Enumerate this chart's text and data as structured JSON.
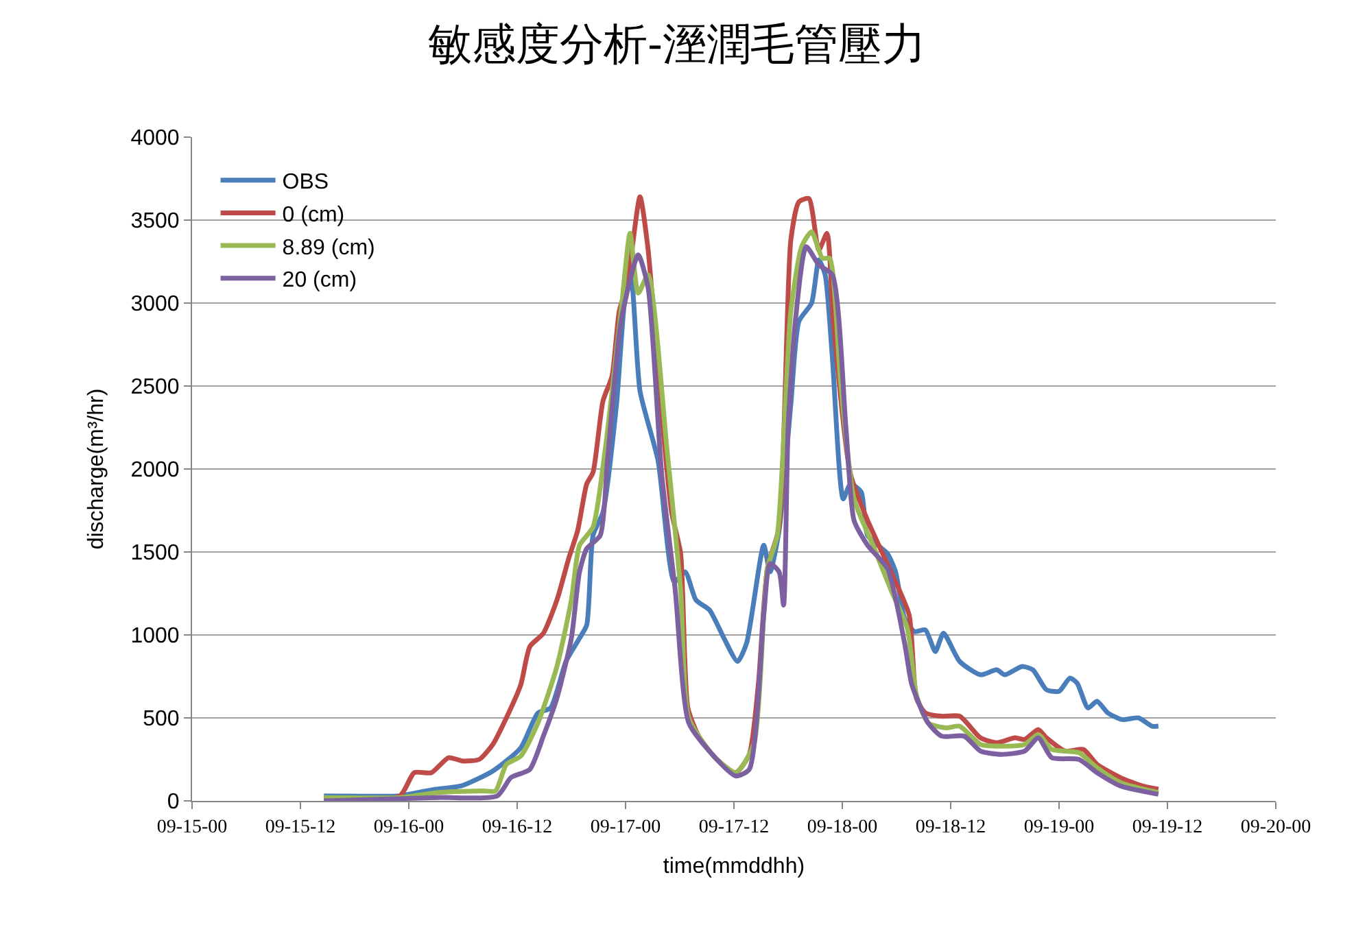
{
  "chart_data": {
    "type": "line",
    "title": "敏感度分析-溼潤毛管壓力",
    "xlabel": "time(mmddhh)",
    "ylabel": "discharge(m³/hr)",
    "xlim": [
      "--09-15T00:00",
      "--09-20T00:00"
    ],
    "xticks": [
      {
        "value": "--09-15T00:00",
        "label": "09-15-00"
      },
      {
        "value": "--09-15T12:00",
        "label": "09-15-12"
      },
      {
        "value": "--09-16T00:00",
        "label": "09-16-00"
      },
      {
        "value": "--09-16T12:00",
        "label": "09-16-12"
      },
      {
        "value": "--09-17T00:00",
        "label": "09-17-00"
      },
      {
        "value": "--09-17T12:00",
        "label": "09-17-12"
      },
      {
        "value": "--09-18T00:00",
        "label": "09-18-00"
      },
      {
        "value": "--09-18T12:00",
        "label": "09-18-12"
      },
      {
        "value": "--09-19T00:00",
        "label": "09-19-00"
      },
      {
        "value": "--09-19T12:00",
        "label": "09-19-12"
      },
      {
        "value": "--09-20T00:00",
        "label": "09-20-00"
      }
    ],
    "ylim": [
      0,
      4000
    ],
    "yticks": [
      0,
      500,
      1000,
      1500,
      2000,
      2500,
      3000,
      3500,
      4000
    ],
    "grid": "y",
    "legend": "top left",
    "marker": "none",
    "line_style": "solid",
    "series": [
      {
        "name": "OBS",
        "color": "#4a7ebb",
        "x": [
          "--09-15T14:36",
          "--09-15T23:00",
          "--09-16T00:00",
          "--09-16T03:00",
          "--09-16T05:48",
          "--09-16T09:18",
          "--09-16T12:24",
          "--09-16T14:18",
          "--09-16T15:42",
          "--09-16T17:24",
          "--09-16T18:54",
          "--09-16T19:42",
          "--09-16T20:24",
          "--09-16T21:30",
          "--09-16T23:00",
          "--09-17T00:00",
          "--09-17T00:36",
          "--09-17T01:36",
          "--09-17T03:36",
          "--09-17T05:24",
          "--09-17T06:36",
          "--09-17T07:48",
          "--09-17T09:18",
          "--09-17T10:54",
          "--09-17T12:24",
          "--09-17T13:24",
          "--09-17T15:18",
          "--09-17T16:00",
          "--09-17T17:00",
          "--09-17T18:18",
          "--09-17T19:12",
          "--09-17T20:36",
          "--09-17T21:24",
          "--09-17T22:06",
          "--09-17T22:54",
          "--09-18T00:06",
          "--09-18T00:54",
          "--09-18T02:06",
          "--09-18T02:48",
          "--09-18T05:00",
          "--09-18T05:54",
          "--09-18T06:54",
          "--09-18T08:00",
          "--09-18T09:12",
          "--09-18T10:18",
          "--09-18T11:12",
          "--09-18T13:00",
          "--09-18T15:18",
          "--09-18T17:06",
          "--09-18T18:00",
          "--09-18T19:54",
          "--09-18T21:06",
          "--09-18T22:36",
          "--09-19T00:00",
          "--09-19T01:12",
          "--09-19T02:00",
          "--09-19T03:12",
          "--09-19T04:12",
          "--09-19T05:24",
          "--09-19T07:00",
          "--09-19T08:48",
          "--09-19T10:18",
          "--09-19T11:00"
        ],
        "values": [
          30,
          30,
          40,
          70,
          90,
          180,
          320,
          530,
          560,
          840,
          980,
          1060,
          1600,
          1740,
          2390,
          3060,
          3150,
          2470,
          2050,
          1320,
          1380,
          1210,
          1150,
          980,
          840,
          950,
          1540,
          1380,
          1630,
          2390,
          2890,
          3000,
          3260,
          3170,
          2670,
          1820,
          1910,
          1860,
          1600,
          1490,
          1380,
          1100,
          1020,
          1030,
          900,
          1010,
          840,
          760,
          790,
          760,
          810,
          790,
          670,
          660,
          740,
          710,
          560,
          600,
          530,
          490,
          500,
          450,
          450
        ]
      },
      {
        "name": "0 (cm)",
        "color": "#be4b48",
        "x": [
          "--09-15T14:36",
          "--09-15T23:00",
          "--09-16T00:36",
          "--09-16T02:30",
          "--09-16T04:24",
          "--09-16T06:00",
          "--09-16T07:48",
          "--09-16T09:18",
          "--09-16T10:48",
          "--09-16T12:24",
          "--09-16T13:24",
          "--09-16T14:54",
          "--09-16T16:24",
          "--09-16T17:42",
          "--09-16T18:42",
          "--09-16T19:42",
          "--09-16T20:24",
          "--09-16T21:30",
          "--09-16T22:30",
          "--09-16T23:18",
          "--09-17T00:12",
          "--09-17T01:36",
          "--09-17T02:30",
          "--09-17T03:54",
          "--09-17T05:06",
          "--09-17T06:06",
          "--09-17T06:54",
          "--09-17T08:06",
          "--09-17T10:06",
          "--09-17T12:12",
          "--09-17T13:42",
          "--09-17T14:42",
          "--09-17T15:42",
          "--09-17T17:00",
          "--09-17T18:18",
          "--09-17T19:12",
          "--09-17T20:18",
          "--09-17T21:24",
          "--09-17T22:18",
          "--09-17T23:00",
          "--09-18T00:54",
          "--09-18T02:48",
          "--09-18T05:24",
          "--09-18T07:24",
          "--09-18T08:12",
          "--09-18T09:12",
          "--09-18T11:00",
          "--09-18T13:00",
          "--09-18T15:18",
          "--09-18T17:06",
          "--09-18T19:06",
          "--09-18T20:12",
          "--09-18T21:42",
          "--09-18T22:36",
          "--09-19T00:42",
          "--09-19T02:42",
          "--09-19T04:12",
          "--09-19T06:48",
          "--09-19T09:12",
          "--09-19T11:00"
        ],
        "values": [
          20,
          30,
          170,
          170,
          260,
          240,
          250,
          340,
          500,
          700,
          930,
          1010,
          1210,
          1460,
          1630,
          1910,
          1980,
          2410,
          2560,
          2950,
          3120,
          3640,
          3320,
          2390,
          1740,
          1490,
          560,
          390,
          250,
          170,
          280,
          700,
          1400,
          1650,
          3380,
          3610,
          3630,
          3320,
          3420,
          2890,
          1970,
          1690,
          1380,
          1120,
          620,
          530,
          510,
          510,
          380,
          350,
          380,
          370,
          430,
          380,
          300,
          310,
          220,
          140,
          90,
          70
        ]
      },
      {
        "name": "8.89 (cm)",
        "color": "#98b954",
        "x": [
          "--09-15T14:36",
          "--09-15T23:00",
          "--09-16T03:12",
          "--09-16T08:12",
          "--09-16T09:36",
          "--09-16T10:48",
          "--09-16T12:24",
          "--09-16T14:18",
          "--09-16T16:24",
          "--09-16T18:00",
          "--09-16T18:54",
          "--09-16T20:24",
          "--09-16T21:48",
          "--09-16T23:30",
          "--09-17T00:30",
          "--09-17T01:24",
          "--09-17T02:30",
          "--09-17T04:36",
          "--09-17T06:06",
          "--09-17T07:00",
          "--09-17T09:36",
          "--09-17T12:12",
          "--09-17T14:12",
          "--09-17T15:18",
          "--09-17T15:42",
          "--09-17T16:48",
          "--09-17T18:18",
          "--09-17T19:30",
          "--09-17T20:36",
          "--09-17T21:48",
          "--09-17T22:36",
          "--09-17T23:48",
          "--09-18T01:18",
          "--09-18T03:24",
          "--09-18T05:24",
          "--09-18T07:12",
          "--09-18T08:12",
          "--09-18T09:30",
          "--09-18T11:30",
          "--09-18T13:00",
          "--09-18T15:18",
          "--09-18T17:36",
          "--09-18T20:12",
          "--09-18T21:42",
          "--09-18T23:12",
          "--09-19T02:12",
          "--09-19T04:12",
          "--09-19T06:48",
          "--09-19T11:00"
        ],
        "values": [
          20,
          20,
          50,
          60,
          60,
          220,
          270,
          470,
          810,
          1210,
          1540,
          1650,
          2140,
          2950,
          3420,
          3060,
          3170,
          2110,
          1270,
          500,
          280,
          170,
          340,
          1120,
          1400,
          1600,
          2950,
          3340,
          3430,
          3270,
          3270,
          2530,
          1820,
          1540,
          1270,
          1040,
          640,
          470,
          440,
          450,
          340,
          330,
          340,
          400,
          310,
          290,
          200,
          110,
          50
        ]
      },
      {
        "name": "20 (cm)",
        "color": "#7d60a0",
        "x": [
          "--09-15T14:36",
          "--09-16T03:12",
          "--09-16T09:48",
          "--09-16T11:18",
          "--09-16T13:24",
          "--09-16T14:54",
          "--09-16T16:24",
          "--09-16T18:00",
          "--09-16T18:54",
          "--09-16T19:42",
          "--09-16T21:12",
          "--09-16T22:00",
          "--09-16T23:30",
          "--09-17T01:24",
          "--09-17T02:30",
          "--09-17T04:00",
          "--09-17T05:30",
          "--09-17T07:00",
          "--09-17T09:36",
          "--09-17T12:12",
          "--09-17T13:42",
          "--09-17T15:18",
          "--09-17T16:00",
          "--09-17T17:00",
          "--09-17T17:30",
          "--09-17T18:00",
          "--09-17T18:48",
          "--09-17T20:00",
          "--09-17T21:24",
          "--09-17T22:54",
          "--09-18T00:24",
          "--09-18T01:18",
          "--09-18T02:48",
          "--09-18T05:00",
          "--09-18T06:54",
          "--09-18T07:42",
          "--09-18T09:30",
          "--09-18T11:00",
          "--09-18T13:30",
          "--09-18T15:18",
          "--09-18T17:36",
          "--09-18T20:12",
          "--09-18T21:42",
          "--09-18T23:12",
          "--09-19T02:12",
          "--09-19T04:12",
          "--09-19T06:48",
          "--09-19T11:00"
        ],
        "values": [
          0,
          20,
          30,
          140,
          190,
          390,
          620,
          980,
          1380,
          1520,
          1600,
          2050,
          2890,
          3290,
          3090,
          1970,
          1270,
          470,
          280,
          150,
          190,
          1120,
          1430,
          1380,
          1180,
          2250,
          2890,
          3340,
          3230,
          3170,
          2250,
          1690,
          1540,
          1400,
          950,
          700,
          470,
          390,
          390,
          300,
          280,
          300,
          380,
          260,
          250,
          170,
          90,
          40
        ]
      }
    ]
  }
}
